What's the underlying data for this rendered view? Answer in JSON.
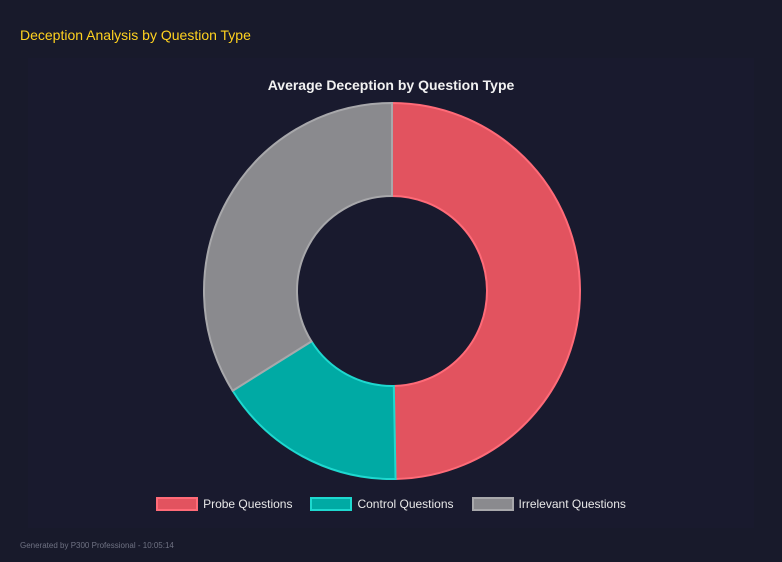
{
  "header": {
    "title": "Deception Analysis by Question Type"
  },
  "footer": {
    "text": "Generated by P300 Professional - 10:05:14"
  },
  "chart_data": {
    "type": "pie",
    "variant": "doughnut",
    "title": "Average Deception by Question Type",
    "categories": [
      "Probe Questions",
      "Control Questions",
      "Irrelevant Questions"
    ],
    "values": [
      49.7,
      16.4,
      33.9
    ],
    "colors": [
      "#e2535f",
      "#00aaa4",
      "#8a8a8e"
    ],
    "border_colors": [
      "#ff6b78",
      "#1ed8cf",
      "#a8a8ab"
    ],
    "legend": "bottom"
  }
}
